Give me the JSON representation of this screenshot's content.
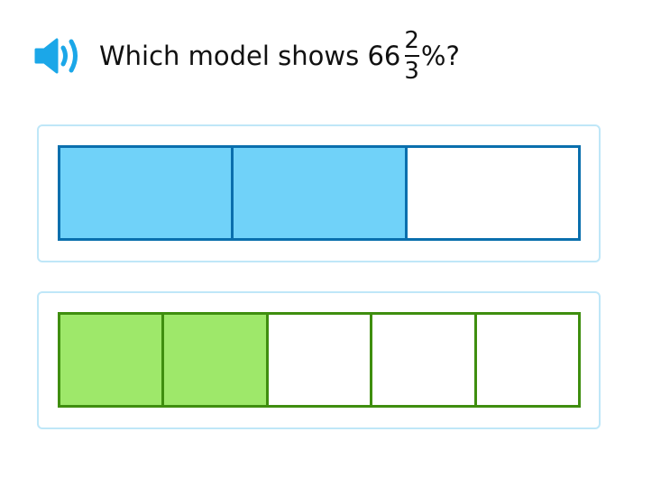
{
  "question": {
    "prefix": "Which model shows 66",
    "numerator": "2",
    "denominator": "3",
    "suffix": "%?",
    "icon": "speaker-icon",
    "icon_color": "#1ba7e8"
  },
  "choices": [
    {
      "segments": 3,
      "shaded": 2,
      "fill": "#70d2f9",
      "border": "#0a6fad"
    },
    {
      "segments": 5,
      "shaded": 2,
      "fill": "#9ee86a",
      "border": "#3f8e0f"
    }
  ]
}
